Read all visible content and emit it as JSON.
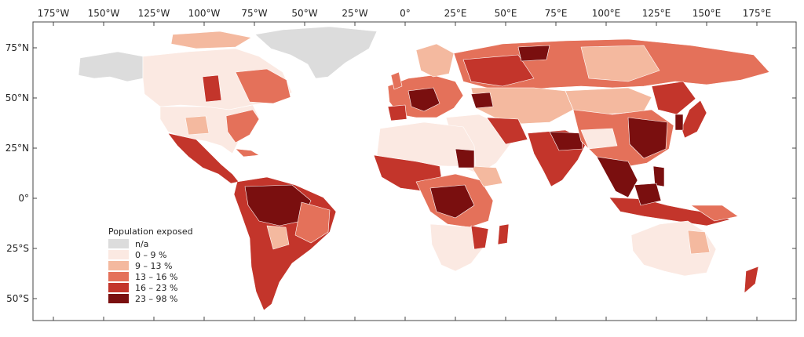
{
  "map": {
    "lon_axis": {
      "top": [
        "175°W",
        "150°W",
        "125°W",
        "100°W",
        "75°W",
        "50°W",
        "25°W",
        "0°",
        "25°E",
        "50°E",
        "75°E",
        "100°E",
        "125°E",
        "150°E",
        "175°E"
      ],
      "bottom": [
        "",
        "",
        "",
        "",
        "",
        "",
        "",
        "",
        "",
        "",
        "",
        "",
        "",
        "",
        ""
      ]
    },
    "lat_axis": [
      "75°N",
      "50°N",
      "25°N",
      "0°",
      "25°S",
      "50°S"
    ],
    "lon_values": [
      -175,
      -150,
      -125,
      -100,
      -75,
      -50,
      -25,
      0,
      25,
      50,
      75,
      100,
      125,
      150,
      175
    ],
    "lat_values": [
      75,
      50,
      25,
      0,
      -25,
      -50
    ],
    "legend": {
      "title": "Population exposed",
      "placement": "bottom-left",
      "items": [
        {
          "label": "n/a",
          "color": "#dcdcdc"
        },
        {
          "label": "0 – 9 %",
          "color": "#fbe9e2"
        },
        {
          "label": "9 – 13 %",
          "color": "#f4b99f"
        },
        {
          "label": "13 – 16 %",
          "color": "#e4715a"
        },
        {
          "label": "16 – 23 %",
          "color": "#c3352b"
        },
        {
          "label": "23 – 98 %",
          "color": "#7a0f0f"
        }
      ]
    }
  }
}
